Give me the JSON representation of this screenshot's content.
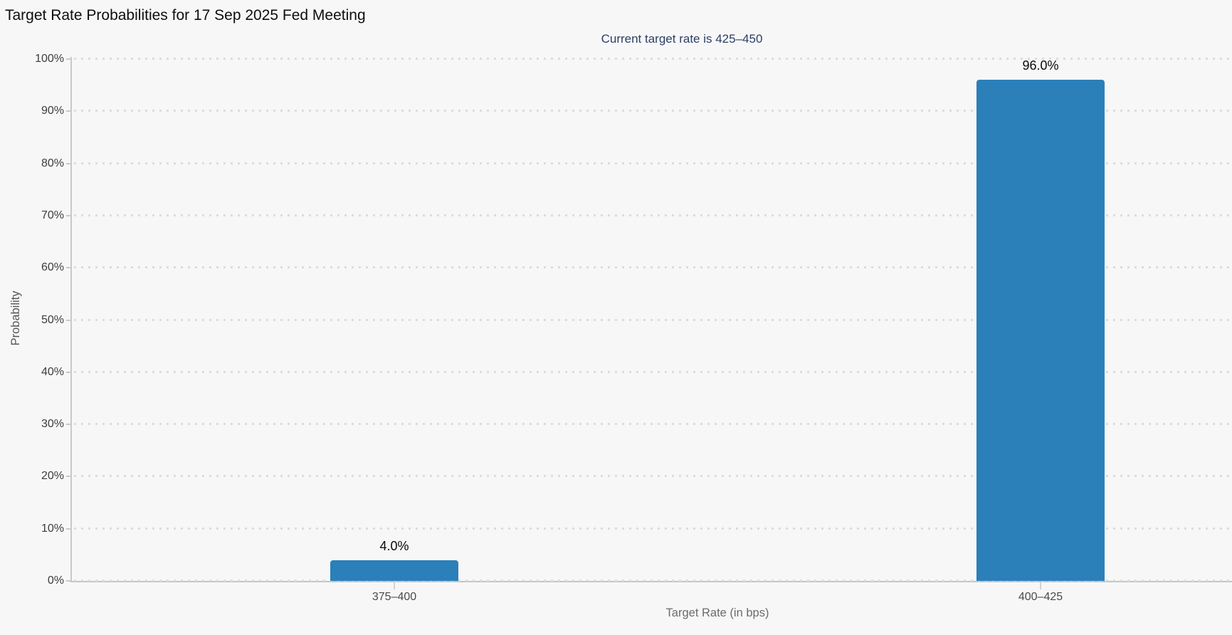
{
  "header": {
    "title": "Target Rate Probabilities for 17 Sep 2025 Fed Meeting",
    "subtitle": "Current target rate is 425–450"
  },
  "axes": {
    "x_title": "Target Rate (in bps)",
    "y_title": "Probability"
  },
  "colors": {
    "bar": "#2b80b9",
    "subtitle_text": "#2b3f66",
    "background": "#f7f7f7",
    "grid_dots": "#dcdcdc",
    "axis_line": "#c9c9c9"
  },
  "chart_data": {
    "type": "bar",
    "title": "Target Rate Probabilities for 17 Sep 2025 Fed Meeting",
    "subtitle": "Current target rate is 425–450",
    "categories": [
      "375–400",
      "400–425"
    ],
    "values": [
      4.0,
      96.0
    ],
    "data_labels": [
      "4.0%",
      "96.0%"
    ],
    "xlabel": "Target Rate (in bps)",
    "ylabel": "Probability",
    "ylim": [
      0,
      100
    ],
    "grid": "horizontal dotted, 10% steps",
    "legend": "none",
    "yticks": [
      {
        "value": 0,
        "label": "0%"
      },
      {
        "value": 10,
        "label": "10%"
      },
      {
        "value": 20,
        "label": "20%"
      },
      {
        "value": 30,
        "label": "30%"
      },
      {
        "value": 40,
        "label": "40%"
      },
      {
        "value": 50,
        "label": "50%"
      },
      {
        "value": 60,
        "label": "60%"
      },
      {
        "value": 70,
        "label": "70%"
      },
      {
        "value": 80,
        "label": "80%"
      },
      {
        "value": 90,
        "label": "90%"
      },
      {
        "value": 100,
        "label": "100%"
      }
    ]
  }
}
